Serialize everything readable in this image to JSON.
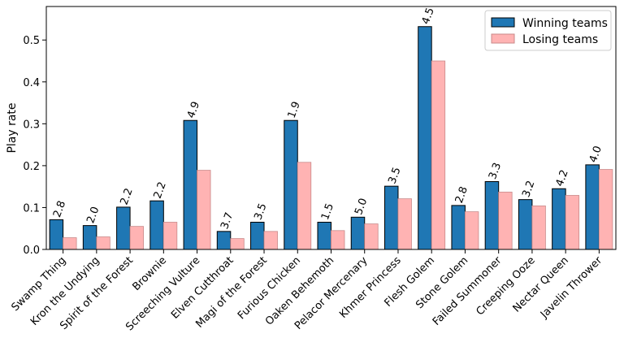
{
  "chart_data": {
    "type": "bar",
    "title": "",
    "xlabel": "",
    "ylabel": "Play rate",
    "ylim": [
      0,
      0.58
    ],
    "yticks": [
      0.0,
      0.1,
      0.2,
      0.3,
      0.4,
      0.5
    ],
    "ytick_labels": [
      "0.0",
      "0.1",
      "0.2",
      "0.3",
      "0.4",
      "0.5"
    ],
    "grid": false,
    "legend_position": "top-right",
    "categories": [
      "Swamp Thing",
      "Kron the Undying",
      "Spirit of the Forest",
      "Brownie",
      "Screeching Vulture",
      "Elven Cutthroat",
      "Magi of the Forest",
      "Furious Chicken",
      "Oaken Behemoth",
      "Pelacor Mercenary",
      "Khmer Princess",
      "Flesh Golem",
      "Stone Golem",
      "Failed Summoner",
      "Creeping Ooze",
      "Nectar Queen",
      "Javelin Thrower"
    ],
    "series": [
      {
        "name": "Winning teams",
        "color": "#1f77b4",
        "values": [
          0.071,
          0.057,
          0.101,
          0.116,
          0.308,
          0.043,
          0.065,
          0.308,
          0.065,
          0.077,
          0.151,
          0.532,
          0.105,
          0.162,
          0.119,
          0.145,
          0.202
        ]
      },
      {
        "name": "Losing teams",
        "color": "#ffb3b3",
        "values": [
          0.028,
          0.03,
          0.055,
          0.065,
          0.189,
          0.026,
          0.043,
          0.208,
          0.045,
          0.061,
          0.121,
          0.45,
          0.09,
          0.137,
          0.104,
          0.129,
          0.191
        ]
      }
    ],
    "bar_labels": [
      "2.8",
      "2.0",
      "2.2",
      "2.2",
      "4.9",
      "3.7",
      "3.5",
      "1.9",
      "1.5",
      "5.0",
      "3.5",
      "4.5",
      "2.8",
      "3.3",
      "3.2",
      "4.2",
      "4.0"
    ]
  }
}
